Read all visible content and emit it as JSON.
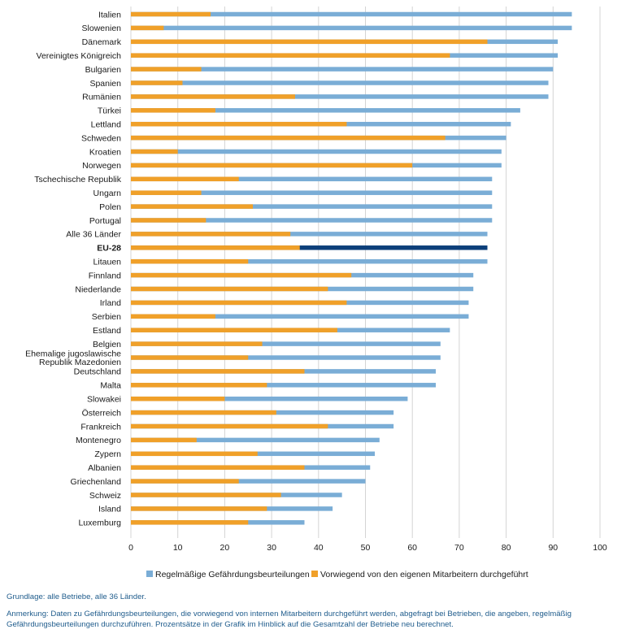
{
  "chart_data": {
    "type": "bar",
    "orientation": "horizontal",
    "stacked_overlay": true,
    "xlim": [
      0,
      100
    ],
    "x_ticks": [
      "0",
      "10",
      "20",
      "30",
      "40",
      "50",
      "60",
      "70",
      "80",
      "90",
      "100"
    ],
    "grid": "vertical",
    "legend_position": "bottom",
    "highlight_category": "EU-28",
    "colors": {
      "total": "#7aadd6",
      "own": "#f0a029",
      "highlight_total": "#0c3f7a",
      "grid": "#d4d4d4"
    },
    "categories": [
      "Italien",
      "Slowenien",
      "Dänemark",
      "Vereinigtes Königreich",
      "Bulgarien",
      "Spanien",
      "Rumänien",
      "Türkei",
      "Lettland",
      "Schweden",
      "Kroatien",
      "Norwegen",
      "Tschechische Republik",
      "Ungarn",
      "Polen",
      "Portugal",
      "Alle 36 Länder",
      "EU-28",
      "Litauen",
      "Finnland",
      "Niederlande",
      "Irland",
      "Serbien",
      "Estland",
      "Belgien",
      "Ehemalige jugoslawische Republik Mazedonien",
      "Deutschland",
      "Malta",
      "Slowakei",
      "Österreich",
      "Frankreich",
      "Montenegro",
      "Zypern",
      "Albanien",
      "Griechenland",
      "Schweiz",
      "Island",
      "Luxemburg"
    ],
    "category_lines": [
      [
        "Italien"
      ],
      [
        "Slowenien"
      ],
      [
        "Dänemark"
      ],
      [
        "Vereinigtes Königreich"
      ],
      [
        "Bulgarien"
      ],
      [
        "Spanien"
      ],
      [
        "Rumänien"
      ],
      [
        "Türkei"
      ],
      [
        "Lettland"
      ],
      [
        "Schweden"
      ],
      [
        "Kroatien"
      ],
      [
        "Norwegen"
      ],
      [
        "Tschechische Republik"
      ],
      [
        "Ungarn"
      ],
      [
        "Polen"
      ],
      [
        "Portugal"
      ],
      [
        "Alle 36 Länder"
      ],
      [
        "EU-28"
      ],
      [
        "Litauen"
      ],
      [
        "Finnland"
      ],
      [
        "Niederlande"
      ],
      [
        "Irland"
      ],
      [
        "Serbien"
      ],
      [
        "Estland"
      ],
      [
        "Belgien"
      ],
      [
        "Ehemalige jugoslawische",
        "Republik Mazedonien"
      ],
      [
        "Deutschland"
      ],
      [
        "Malta"
      ],
      [
        "Slowakei"
      ],
      [
        "Österreich"
      ],
      [
        "Frankreich"
      ],
      [
        "Montenegro"
      ],
      [
        "Zypern"
      ],
      [
        "Albanien"
      ],
      [
        "Griechenland"
      ],
      [
        "Schweiz"
      ],
      [
        "Island"
      ],
      [
        "Luxemburg"
      ]
    ],
    "series": [
      {
        "name": "Regelmäßige Gefährdungsbeurteilungen",
        "values": [
          94,
          94,
          91,
          91,
          90,
          89,
          89,
          83,
          81,
          80,
          79,
          79,
          77,
          77,
          77,
          77,
          76,
          76,
          76,
          73,
          73,
          72,
          72,
          68,
          66,
          66,
          65,
          65,
          59,
          56,
          56,
          53,
          52,
          51,
          50,
          45,
          43,
          37
        ]
      },
      {
        "name": "Vorwiegend von den eigenen Mitarbeitern durchgeführt",
        "values": [
          17,
          7,
          76,
          68,
          15,
          11,
          35,
          18,
          46,
          67,
          10,
          60,
          23,
          15,
          26,
          16,
          34,
          36,
          25,
          47,
          42,
          46,
          18,
          44,
          28,
          25,
          37,
          29,
          20,
          31,
          42,
          14,
          27,
          37,
          23,
          32,
          29,
          25
        ]
      }
    ]
  },
  "notes": {
    "basis": "Grundlage: alle Betriebe, alle 36 Länder.",
    "remark": "Anmerkung: Daten zu Gefährdungsbeurteilungen, die vorwiegend von internen Mitarbeitern durchgeführt werden, abgefragt bei Betrieben, die angeben, regelmäßig Gefährdungsbeurteilungen durchzuführen. Prozentsätze in der Grafik im Hinblick auf die Gesamtzahl der Betriebe neu berechnet."
  }
}
